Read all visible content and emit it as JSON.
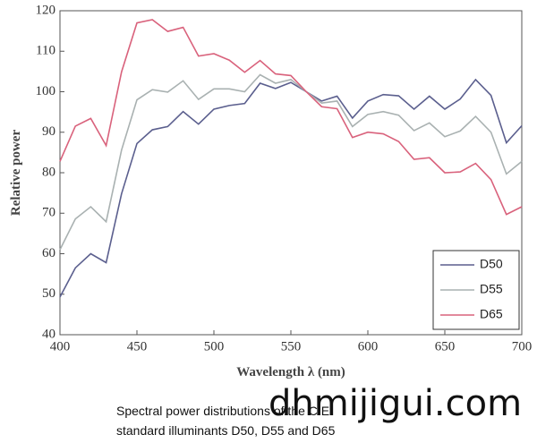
{
  "chart_data": {
    "type": "line",
    "x": [
      400,
      410,
      420,
      430,
      440,
      450,
      460,
      470,
      480,
      490,
      500,
      510,
      520,
      530,
      540,
      550,
      560,
      570,
      580,
      590,
      600,
      610,
      620,
      630,
      640,
      650,
      660,
      670,
      680,
      690,
      700
    ],
    "series": [
      {
        "name": "D50",
        "color": "#5b5f8e",
        "values": [
          49.3,
          56.5,
          60.0,
          57.8,
          74.8,
          87.2,
          90.6,
          91.4,
          95.1,
          92.0,
          95.7,
          96.6,
          97.1,
          102.1,
          100.8,
          102.3,
          100,
          97.7,
          98.9,
          93.5,
          97.7,
          99.3,
          99.0,
          95.7,
          98.9,
          95.7,
          98.2,
          103.0,
          99.1,
          87.4,
          91.6
        ]
      },
      {
        "name": "D55",
        "color": "#a9b1b1",
        "values": [
          61.0,
          68.6,
          71.6,
          67.9,
          85.6,
          98.0,
          100.5,
          99.9,
          102.7,
          98.1,
          100.7,
          100.7,
          100.0,
          104.2,
          102.1,
          103.0,
          100,
          97.2,
          97.7,
          91.4,
          94.4,
          95.1,
          94.2,
          90.4,
          92.3,
          88.9,
          90.3,
          93.9,
          90.0,
          79.7,
          82.8
        ]
      },
      {
        "name": "D65",
        "color": "#d9627c",
        "values": [
          82.8,
          91.5,
          93.4,
          86.7,
          104.9,
          117.0,
          117.8,
          114.9,
          115.9,
          108.8,
          109.4,
          107.8,
          104.8,
          107.7,
          104.4,
          104.0,
          100,
          96.3,
          95.8,
          88.7,
          90.0,
          89.6,
          87.7,
          83.3,
          83.7,
          80.0,
          80.2,
          82.3,
          78.3,
          69.7,
          71.6
        ]
      }
    ],
    "xlim": [
      400,
      700
    ],
    "xticks": [
      400,
      450,
      500,
      550,
      600,
      650,
      700
    ],
    "ylim": [
      40,
      120
    ],
    "yticks": [
      40,
      50,
      60,
      70,
      80,
      90,
      100,
      110,
      120
    ],
    "x_label": "Wavelength λ (nm)",
    "y_label": "Relative power",
    "legend": "lower right",
    "caption": [
      "Spectral power distributions of the CIE",
      "standard illuminants D50, D55 and D65"
    ],
    "watermark": "dhmijigui.com"
  }
}
